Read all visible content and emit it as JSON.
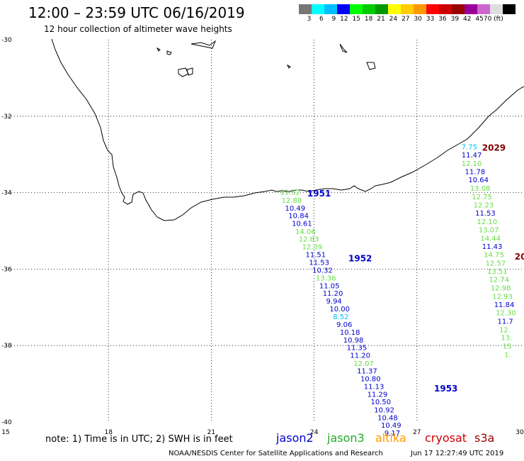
{
  "header": {
    "title": "12:00 – 23:59 UTC 06/16/2019",
    "subtitle": "12 hour collection of altimeter wave heights"
  },
  "colorbar": {
    "colors": [
      "#777777",
      "#00ffff",
      "#00bfff",
      "#0000ff",
      "#00ff00",
      "#00cc00",
      "#009900",
      "#ffff00",
      "#ffcc00",
      "#ff9900",
      "#ff0000",
      "#cc0000",
      "#990000",
      "#990099",
      "#cc66cc",
      "#dddddd",
      "#000000"
    ],
    "labels": [
      "3",
      "6",
      "9",
      "12",
      "15",
      "18",
      "21",
      "24",
      "27",
      "30",
      "33",
      "36",
      "39",
      "42",
      "45",
      "70 (ft)",
      ""
    ]
  },
  "axes": {
    "lon_ticks": [
      "15",
      "18",
      "21",
      "24",
      "27",
      "30"
    ],
    "lat_ticks": [
      "-30",
      "-32",
      "-34",
      "-36",
      "-38",
      "-40"
    ]
  },
  "passes": [
    {
      "label": "1951",
      "color": "#0000cc",
      "lon": 23.8,
      "lat": -34.1
    },
    {
      "label": "1952",
      "color": "#0000cc",
      "lon": 25.0,
      "lat": -35.8
    },
    {
      "label": "1953",
      "color": "#0000cc",
      "lon": 27.5,
      "lat": -39.2
    },
    {
      "label": "2029",
      "color": "#800000",
      "lon": 28.9,
      "lat": -32.9
    },
    {
      "label": "20",
      "color": "#800000",
      "lon": 29.85,
      "lat": -35.75
    }
  ],
  "tracks": [
    {
      "name": "track-1951",
      "points": [
        {
          "lon": 23.0,
          "lat": -34.05,
          "v": "13.32",
          "c": "#66dd44"
        },
        {
          "lon": 23.05,
          "lat": -34.27,
          "v": "12.88",
          "c": "#66dd44"
        },
        {
          "lon": 23.15,
          "lat": -34.47,
          "v": "10.49",
          "c": "#0000cc"
        },
        {
          "lon": 23.25,
          "lat": -34.67,
          "v": "10.84",
          "c": "#0000cc"
        },
        {
          "lon": 23.35,
          "lat": -34.87,
          "v": "10.61",
          "c": "#0000cc"
        },
        {
          "lon": 23.45,
          "lat": -35.08,
          "v": "14.06",
          "c": "#66dd44"
        },
        {
          "lon": 23.55,
          "lat": -35.28,
          "v": "12.83",
          "c": "#66dd44"
        },
        {
          "lon": 23.65,
          "lat": -35.48,
          "v": "12.39",
          "c": "#66dd44"
        },
        {
          "lon": 23.75,
          "lat": -35.69,
          "v": "11.51",
          "c": "#0000cc"
        },
        {
          "lon": 23.85,
          "lat": -35.89,
          "v": "11.53",
          "c": "#0000cc"
        },
        {
          "lon": 23.95,
          "lat": -36.09,
          "v": "10.32",
          "c": "#0000cc"
        },
        {
          "lon": 24.05,
          "lat": -36.3,
          "v": "13.36",
          "c": "#66dd44"
        },
        {
          "lon": 24.15,
          "lat": -36.5,
          "v": "11.05",
          "c": "#0000cc"
        },
        {
          "lon": 24.25,
          "lat": -36.7,
          "v": "11.20",
          "c": "#0000cc"
        },
        {
          "lon": 24.35,
          "lat": -36.9,
          "v": "9.94",
          "c": "#0000cc"
        },
        {
          "lon": 24.45,
          "lat": -37.11,
          "v": "10.00",
          "c": "#0000cc"
        },
        {
          "lon": 24.55,
          "lat": -37.31,
          "v": "8.52",
          "c": "#00bfff"
        },
        {
          "lon": 24.65,
          "lat": -37.51,
          "v": "9.06",
          "c": "#0000cc"
        },
        {
          "lon": 24.75,
          "lat": -37.72,
          "v": "10.18",
          "c": "#0000cc"
        },
        {
          "lon": 24.85,
          "lat": -37.92,
          "v": "10.98",
          "c": "#0000cc"
        },
        {
          "lon": 24.95,
          "lat": -38.12,
          "v": "11.35",
          "c": "#0000cc"
        },
        {
          "lon": 25.05,
          "lat": -38.32,
          "v": "11.20",
          "c": "#0000cc"
        },
        {
          "lon": 25.15,
          "lat": -38.53,
          "v": "12.07",
          "c": "#66dd44"
        },
        {
          "lon": 25.25,
          "lat": -38.73,
          "v": "11.37",
          "c": "#0000cc"
        },
        {
          "lon": 25.35,
          "lat": -38.93,
          "v": "10.80",
          "c": "#0000cc"
        },
        {
          "lon": 25.45,
          "lat": -39.14,
          "v": "11.13",
          "c": "#0000cc"
        },
        {
          "lon": 25.55,
          "lat": -39.34,
          "v": "11.29",
          "c": "#0000cc"
        },
        {
          "lon": 25.65,
          "lat": -39.54,
          "v": "10.50",
          "c": "#0000cc"
        },
        {
          "lon": 25.75,
          "lat": -39.75,
          "v": "10.92",
          "c": "#0000cc"
        },
        {
          "lon": 25.85,
          "lat": -39.95,
          "v": "10.48",
          "c": "#0000cc"
        },
        {
          "lon": 25.95,
          "lat": -40.15,
          "v": "10.49",
          "c": "#0000cc"
        },
        {
          "lon": 26.05,
          "lat": -40.35,
          "v": "9.17",
          "c": "#0000cc"
        }
      ]
    },
    {
      "name": "track-2029",
      "points": [
        {
          "lon": 28.3,
          "lat": -32.87,
          "v": "7.75",
          "c": "#00bfff"
        },
        {
          "lon": 28.3,
          "lat": -33.08,
          "v": "11.47",
          "c": "#0000cc"
        },
        {
          "lon": 28.3,
          "lat": -33.3,
          "v": "12.10",
          "c": "#66dd44"
        },
        {
          "lon": 28.4,
          "lat": -33.52,
          "v": "11.78",
          "c": "#0000cc"
        },
        {
          "lon": 28.5,
          "lat": -33.73,
          "v": "10.64",
          "c": "#0000cc"
        },
        {
          "lon": 28.55,
          "lat": -33.95,
          "v": "13.08",
          "c": "#66dd44"
        },
        {
          "lon": 28.6,
          "lat": -34.17,
          "v": "12.75",
          "c": "#66dd44"
        },
        {
          "lon": 28.65,
          "lat": -34.39,
          "v": "12.23",
          "c": "#66dd44"
        },
        {
          "lon": 28.7,
          "lat": -34.6,
          "v": "11.53",
          "c": "#0000cc"
        },
        {
          "lon": 28.75,
          "lat": -34.82,
          "v": "12.10",
          "c": "#66dd44"
        },
        {
          "lon": 28.8,
          "lat": -35.04,
          "v": "13.07",
          "c": "#66dd44"
        },
        {
          "lon": 28.85,
          "lat": -35.26,
          "v": "14.44",
          "c": "#66dd44"
        },
        {
          "lon": 28.9,
          "lat": -35.47,
          "v": "11.43",
          "c": "#0000cc"
        },
        {
          "lon": 28.95,
          "lat": -35.69,
          "v": "14.75",
          "c": "#66dd44"
        },
        {
          "lon": 29.0,
          "lat": -35.91,
          "v": "12.57",
          "c": "#66dd44"
        },
        {
          "lon": 29.05,
          "lat": -36.12,
          "v": "13.51",
          "c": "#66dd44"
        },
        {
          "lon": 29.1,
          "lat": -36.34,
          "v": "12.74",
          "c": "#66dd44"
        },
        {
          "lon": 29.15,
          "lat": -36.56,
          "v": "12.98",
          "c": "#66dd44"
        },
        {
          "lon": 29.2,
          "lat": -36.78,
          "v": "12.93",
          "c": "#66dd44"
        },
        {
          "lon": 29.25,
          "lat": -36.99,
          "v": "11.84",
          "c": "#0000cc"
        },
        {
          "lon": 29.3,
          "lat": -37.21,
          "v": "12.30",
          "c": "#66dd44"
        },
        {
          "lon": 29.35,
          "lat": -37.43,
          "v": "11.7",
          "c": "#0000cc"
        },
        {
          "lon": 29.4,
          "lat": -37.65,
          "v": "12.",
          "c": "#66dd44"
        },
        {
          "lon": 29.45,
          "lat": -37.86,
          "v": "13.",
          "c": "#66dd44"
        },
        {
          "lon": 29.5,
          "lat": -38.08,
          "v": "15",
          "c": "#66dd44"
        },
        {
          "lon": 29.55,
          "lat": -38.3,
          "v": "1.",
          "c": "#66dd44"
        }
      ]
    }
  ],
  "footer": {
    "note": "note: 1) Time is in UTC; 2) SWH is in feet",
    "legend": [
      {
        "label": "jason2",
        "color": "#0000cc"
      },
      {
        "label": "jason3",
        "color": "#22aa22"
      },
      {
        "label": "altika",
        "color": "#ff9900"
      },
      {
        "label": "cryosat",
        "color": "#cc0000"
      },
      {
        "label": "s3a",
        "color": "#990000"
      }
    ],
    "credit": "NOAA/NESDIS Center for Satellite Applications and Research",
    "timestamp": "Jun 17 12:27:49 UTC 2019"
  }
}
